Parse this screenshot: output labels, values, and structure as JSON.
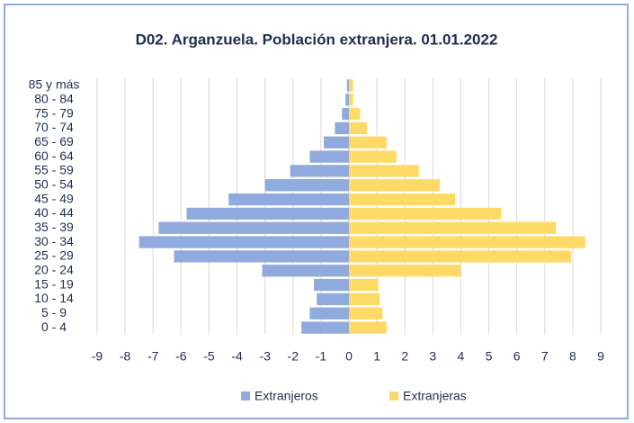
{
  "chart_data": {
    "type": "bar",
    "orientation": "horizontal",
    "stacked": true,
    "title": "D02. Arganzuela. Población extranjera. 01.01.2022",
    "categories": [
      "0 - 4",
      "5 - 9",
      "10 - 14",
      "15 - 19",
      "20 - 24",
      "25 - 29",
      "30 - 34",
      "35 - 39",
      "40 - 44",
      "45 - 49",
      "50 - 54",
      "55 - 59",
      "60 - 64",
      "65 - 69",
      "70 - 74",
      "75 - 79",
      "80 - 84",
      "85 y más"
    ],
    "series": [
      {
        "name": "Extranjeros",
        "color": "#8faadc",
        "values": [
          -1.7,
          -1.4,
          -1.15,
          -1.25,
          -3.1,
          -6.25,
          -7.5,
          -6.8,
          -5.8,
          -4.3,
          -3.0,
          -2.1,
          -1.4,
          -0.9,
          -0.5,
          -0.25,
          -0.12,
          -0.07
        ]
      },
      {
        "name": "Extranjeras",
        "color": "#ffd966",
        "values": [
          1.35,
          1.2,
          1.1,
          1.05,
          4.0,
          7.95,
          8.45,
          7.4,
          5.45,
          3.8,
          3.25,
          2.5,
          1.7,
          1.35,
          0.65,
          0.4,
          0.15,
          0.15
        ]
      }
    ],
    "xlim": [
      -9,
      9
    ],
    "xticks": [
      -9,
      -8,
      -7,
      -6,
      -5,
      -4,
      -3,
      -2,
      -1,
      0,
      1,
      2,
      3,
      4,
      5,
      6,
      7,
      8,
      9
    ],
    "grid": true,
    "legend": "bottom"
  }
}
